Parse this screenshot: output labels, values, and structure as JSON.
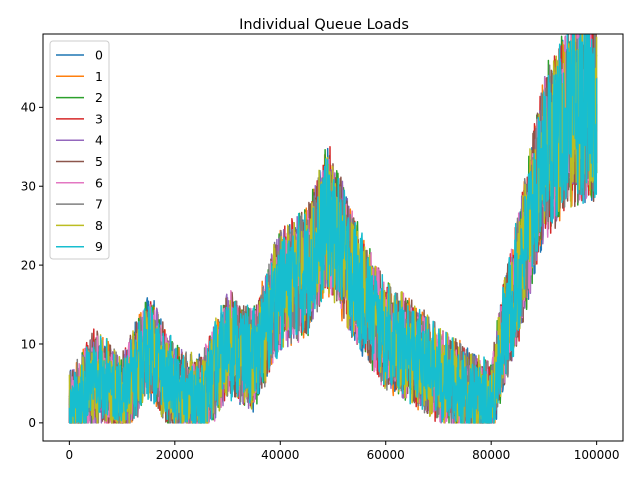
{
  "chart_data": {
    "type": "line",
    "title": "Individual Queue Loads",
    "xlabel": "",
    "ylabel": "",
    "xlim": [
      -5000,
      105000
    ],
    "ylim": [
      -2.3,
      49.3
    ],
    "x_ticks": [
      0,
      20000,
      40000,
      60000,
      80000,
      100000
    ],
    "x_tick_labels": [
      "0",
      "20000",
      "40000",
      "60000",
      "80000",
      "100000"
    ],
    "y_ticks": [
      0,
      10,
      20,
      30,
      40
    ],
    "y_tick_labels": [
      "0",
      "10",
      "20",
      "30",
      "40"
    ],
    "legend_position": "top-left",
    "grid": false,
    "approx_series_trend": {
      "x": [
        0,
        5000,
        10000,
        15000,
        20000,
        25000,
        30000,
        35000,
        40000,
        45000,
        49000,
        55000,
        60000,
        65000,
        70000,
        75000,
        80000,
        82000,
        85000,
        90000,
        95000,
        100000
      ],
      "y": [
        1,
        6,
        3,
        10,
        4,
        3,
        10,
        8,
        17,
        19,
        26,
        17,
        11,
        9,
        6,
        4,
        2,
        10,
        18,
        34,
        39,
        40
      ]
    },
    "series": [
      {
        "name": "0",
        "color": "#1f77b4"
      },
      {
        "name": "1",
        "color": "#ff7f0e"
      },
      {
        "name": "2",
        "color": "#2ca02c"
      },
      {
        "name": "3",
        "color": "#d62728"
      },
      {
        "name": "4",
        "color": "#9467bd"
      },
      {
        "name": "5",
        "color": "#8c564b"
      },
      {
        "name": "6",
        "color": "#e377c2"
      },
      {
        "name": "7",
        "color": "#7f7f7f"
      },
      {
        "name": "8",
        "color": "#bcbd22"
      },
      {
        "name": "9",
        "color": "#17becf"
      }
    ]
  }
}
